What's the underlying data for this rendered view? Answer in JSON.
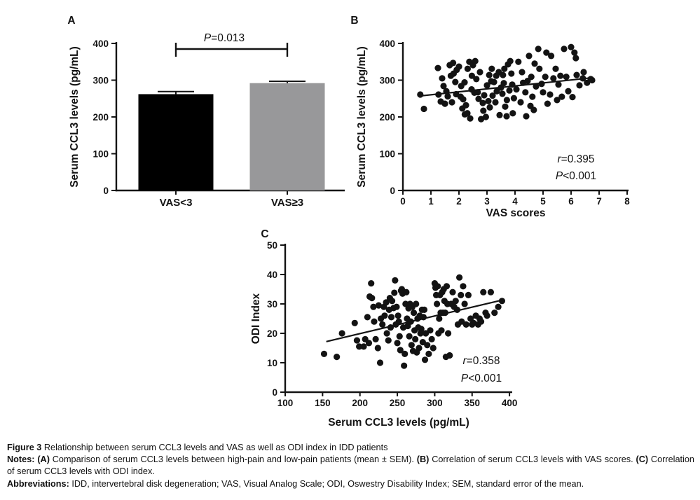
{
  "figure_title_block": {
    "panel_letters": [
      "A",
      "B",
      "C"
    ]
  },
  "chart_data": [
    {
      "id": "A",
      "type": "bar",
      "title": "",
      "categories": [
        "VAS<3",
        "VAS≥3"
      ],
      "values": [
        262,
        292
      ],
      "sem": [
        7,
        5
      ],
      "bar_colors": [
        "#000000",
        "#98989a"
      ],
      "xlabel": "",
      "ylabel": "Serum CCL3 levels (pg/mL)",
      "ylim": [
        0,
        400
      ],
      "yticks": [
        0,
        100,
        200,
        300,
        400
      ],
      "grid": false,
      "significance": {
        "var": "P",
        "rest": "=0.013",
        "between": [
          "VAS<3",
          "VAS≥3"
        ]
      }
    },
    {
      "id": "B",
      "type": "scatter",
      "title": "",
      "xlabel": "VAS scores",
      "ylabel": "Serum CCL3 levels (pg/mL)",
      "xlim": [
        0,
        8
      ],
      "ylim": [
        0,
        400
      ],
      "xticks": [
        0,
        1,
        2,
        3,
        4,
        5,
        6,
        7,
        8
      ],
      "yticks": [
        0,
        100,
        200,
        300,
        400
      ],
      "grid": false,
      "annotations": [
        {
          "var": "r",
          "rest": "=0.395"
        },
        {
          "var": "P",
          "rest": "<0.001"
        }
      ],
      "regression": {
        "x1": 0.6,
        "y1": 257,
        "x2": 6.8,
        "y2": 307
      },
      "points": [
        [
          0.62,
          261
        ],
        [
          0.75,
          222
        ],
        [
          1.25,
          333
        ],
        [
          1.27,
          261
        ],
        [
          1.35,
          242
        ],
        [
          1.4,
          305
        ],
        [
          1.45,
          284
        ],
        [
          1.5,
          236
        ],
        [
          1.55,
          270
        ],
        [
          1.6,
          256
        ],
        [
          1.67,
          341
        ],
        [
          1.71,
          312
        ],
        [
          1.75,
          240
        ],
        [
          1.79,
          347
        ],
        [
          1.81,
          318
        ],
        [
          1.87,
          295
        ],
        [
          1.9,
          262
        ],
        [
          1.92,
          328
        ],
        [
          2.0,
          337
        ],
        [
          2.06,
          255
        ],
        [
          2.08,
          284
        ],
        [
          2.12,
          223
        ],
        [
          2.15,
          248
        ],
        [
          2.2,
          294
        ],
        [
          2.21,
          207
        ],
        [
          2.25,
          232
        ],
        [
          2.3,
          210
        ],
        [
          2.31,
          331
        ],
        [
          2.37,
          350
        ],
        [
          2.4,
          196
        ],
        [
          2.45,
          275
        ],
        [
          2.46,
          312
        ],
        [
          2.5,
          341
        ],
        [
          2.55,
          266
        ],
        [
          2.58,
          352
        ],
        [
          2.62,
          303
        ],
        [
          2.67,
          267
        ],
        [
          2.7,
          249
        ],
        [
          2.75,
          322
        ],
        [
          2.79,
          194
        ],
        [
          2.85,
          238
        ],
        [
          2.87,
          217
        ],
        [
          2.9,
          259
        ],
        [
          2.96,
          200
        ],
        [
          3.0,
          286
        ],
        [
          3.05,
          243
        ],
        [
          3.08,
          314
        ],
        [
          3.1,
          226
        ],
        [
          3.15,
          297
        ],
        [
          3.17,
          331
        ],
        [
          3.2,
          258
        ],
        [
          3.25,
          295
        ],
        [
          3.3,
          240
        ],
        [
          3.33,
          312
        ],
        [
          3.35,
          270
        ],
        [
          3.42,
          322
        ],
        [
          3.45,
          205
        ],
        [
          3.5,
          280
        ],
        [
          3.55,
          263
        ],
        [
          3.57,
          314
        ],
        [
          3.6,
          292
        ],
        [
          3.62,
          331
        ],
        [
          3.65,
          228
        ],
        [
          3.7,
          202
        ],
        [
          3.71,
          246
        ],
        [
          3.75,
          343
        ],
        [
          3.8,
          272
        ],
        [
          3.83,
          352
        ],
        [
          3.87,
          318
        ],
        [
          3.9,
          288
        ],
        [
          3.92,
          210
        ],
        [
          3.96,
          251
        ],
        [
          4.05,
          275
        ],
        [
          4.12,
          350
        ],
        [
          4.2,
          240
        ],
        [
          4.25,
          322
        ],
        [
          4.29,
          293
        ],
        [
          4.37,
          267
        ],
        [
          4.4,
          202
        ],
        [
          4.45,
          298
        ],
        [
          4.5,
          366
        ],
        [
          4.55,
          230
        ],
        [
          4.58,
          309
        ],
        [
          4.62,
          255
        ],
        [
          4.67,
          219
        ],
        [
          4.7,
          345
        ],
        [
          4.75,
          283
        ],
        [
          4.83,
          385
        ],
        [
          4.87,
          331
        ],
        [
          4.95,
          290
        ],
        [
          5.0,
          267
        ],
        [
          5.08,
          309
        ],
        [
          5.12,
          375
        ],
        [
          5.16,
          236
        ],
        [
          5.25,
          261
        ],
        [
          5.29,
          366
        ],
        [
          5.37,
          305
        ],
        [
          5.45,
          331
        ],
        [
          5.5,
          246
        ],
        [
          5.55,
          288
        ],
        [
          5.62,
          312
        ],
        [
          5.67,
          255
        ],
        [
          5.75,
          385
        ],
        [
          5.83,
          309
        ],
        [
          5.9,
          270
        ],
        [
          6.0,
          390
        ],
        [
          6.05,
          254
        ],
        [
          6.12,
          375
        ],
        [
          6.17,
          360
        ],
        [
          6.2,
          314
        ],
        [
          6.3,
          286
        ],
        [
          6.42,
          305
        ],
        [
          6.45,
          322
        ],
        [
          6.57,
          293
        ],
        [
          6.7,
          303
        ],
        [
          6.75,
          300
        ]
      ]
    },
    {
      "id": "C",
      "type": "scatter",
      "title": "",
      "xlabel": "Serum CCL3 levels (pg/mL)",
      "ylabel": "ODI Index",
      "xlim": [
        100,
        400
      ],
      "ylim": [
        0,
        50
      ],
      "xticks": [
        100,
        150,
        200,
        250,
        300,
        350,
        400
      ],
      "yticks": [
        0,
        10,
        20,
        30,
        40,
        50
      ],
      "grid": false,
      "annotations": [
        {
          "var": "r",
          "rest": "=0.358"
        },
        {
          "var": "P",
          "rest": "<0.001"
        }
      ],
      "regression": {
        "x1": 155,
        "y1": 17.2,
        "x2": 390,
        "y2": 31.3
      },
      "points": [
        [
          152,
          13
        ],
        [
          169,
          12
        ],
        [
          176,
          20
        ],
        [
          193,
          23.5
        ],
        [
          196,
          17.6
        ],
        [
          199,
          15.5
        ],
        [
          205,
          15.5
        ],
        [
          207,
          18
        ],
        [
          210,
          25.5
        ],
        [
          212,
          16.7
        ],
        [
          213,
          32.5
        ],
        [
          215,
          37
        ],
        [
          216,
          32
        ],
        [
          218,
          29
        ],
        [
          219,
          24
        ],
        [
          221,
          18
        ],
        [
          224,
          15
        ],
        [
          225,
          29.5
        ],
        [
          227,
          10
        ],
        [
          228,
          25
        ],
        [
          230,
          23
        ],
        [
          232,
          29
        ],
        [
          233,
          26
        ],
        [
          235,
          30.5
        ],
        [
          236,
          20
        ],
        [
          238,
          17.6
        ],
        [
          239,
          28
        ],
        [
          240,
          32
        ],
        [
          241,
          22
        ],
        [
          242,
          25.5
        ],
        [
          243,
          31
        ],
        [
          245,
          28.6
        ],
        [
          246,
          33.8
        ],
        [
          247,
          38
        ],
        [
          248,
          23
        ],
        [
          249,
          29
        ],
        [
          250,
          16.7
        ],
        [
          251,
          26
        ],
        [
          252,
          24
        ],
        [
          253,
          19
        ],
        [
          254,
          14.3
        ],
        [
          255,
          34.5
        ],
        [
          256,
          35
        ],
        [
          257,
          33.5
        ],
        [
          258,
          22
        ],
        [
          259,
          9
        ],
        [
          260,
          13
        ],
        [
          261,
          30
        ],
        [
          262,
          34
        ],
        [
          263,
          25
        ],
        [
          264,
          22.5
        ],
        [
          265,
          28.5
        ],
        [
          266,
          19
        ],
        [
          267,
          30
        ],
        [
          268,
          24
        ],
        [
          269,
          16
        ],
        [
          270,
          29
        ],
        [
          271,
          14
        ],
        [
          272,
          27
        ],
        [
          273,
          21
        ],
        [
          274,
          18
        ],
        [
          275,
          30
        ],
        [
          276,
          13.5
        ],
        [
          277,
          25
        ],
        [
          278,
          22
        ],
        [
          279,
          15
        ],
        [
          280,
          26
        ],
        [
          281,
          20
        ],
        [
          282,
          21.5
        ],
        [
          283,
          28
        ],
        [
          284,
          17
        ],
        [
          285,
          25.5
        ],
        [
          286,
          28
        ],
        [
          287,
          11
        ],
        [
          288,
          20
        ],
        [
          290,
          16
        ],
        [
          292,
          13
        ],
        [
          294,
          21
        ],
        [
          296,
          18
        ],
        [
          298,
          15
        ],
        [
          300,
          37
        ],
        [
          301,
          35.5
        ],
        [
          302,
          33
        ],
        [
          303,
          30
        ],
        [
          304,
          36
        ],
        [
          305,
          20
        ],
        [
          306,
          25
        ],
        [
          307,
          33
        ],
        [
          308,
          27
        ],
        [
          309,
          21
        ],
        [
          310,
          34
        ],
        [
          311,
          27
        ],
        [
          312,
          35
        ],
        [
          313,
          31
        ],
        [
          314,
          27
        ],
        [
          315,
          12
        ],
        [
          316,
          36
        ],
        [
          317,
          30
        ],
        [
          318,
          20
        ],
        [
          320,
          12.5
        ],
        [
          322,
          30
        ],
        [
          324,
          34
        ],
        [
          326,
          29
        ],
        [
          328,
          31
        ],
        [
          330,
          28
        ],
        [
          331,
          23
        ],
        [
          333,
          39
        ],
        [
          335,
          33
        ],
        [
          336,
          24
        ],
        [
          338,
          36
        ],
        [
          340,
          30
        ],
        [
          342,
          23
        ],
        [
          345,
          33
        ],
        [
          348,
          25
        ],
        [
          350,
          23
        ],
        [
          352,
          23.5
        ],
        [
          355,
          26
        ],
        [
          358,
          23
        ],
        [
          360,
          25
        ],
        [
          362,
          24
        ],
        [
          365,
          34
        ],
        [
          368,
          27
        ],
        [
          370,
          26
        ],
        [
          375,
          34
        ],
        [
          380,
          27
        ],
        [
          385,
          29
        ],
        [
          390,
          31
        ]
      ]
    }
  ],
  "caption": {
    "figure_label": "Figure 3",
    "figure_text": "Relationship between serum CCL3 levels and VAS as well as ODI index in IDD patients",
    "notes_label": "Notes:",
    "note_a_label": "(A)",
    "note_a": "Comparison of serum CCL3 levels between high-pain and low-pain patients (mean ± SEM).",
    "note_b_label": "(B)",
    "note_b": "Correlation of serum CCL3 levels with VAS scores.",
    "note_c_label": "(C)",
    "note_c": "Correlation of serum CCL3 levels with ODI index.",
    "abbr_label": "Abbreviations:",
    "abbr_text": "IDD, intervertebral disk degeneration; VAS, Visual Analog Scale; ODI, Oswestry Disability Index; SEM, standard error of the mean."
  }
}
